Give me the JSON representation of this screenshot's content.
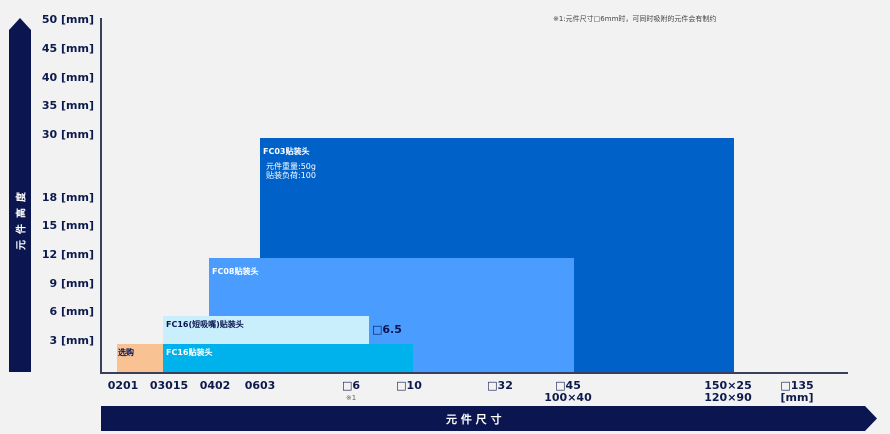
{
  "note": "※1:元件尺寸□6mm时，可同时吸附的元件会有制约",
  "y_axis_title": "元件高度",
  "x_axis_title": "元 件 尺 寸",
  "y_ticks": [
    "50 [mm]",
    "45 [mm]",
    "40 [mm]",
    "35 [mm]",
    "30 [mm]",
    "18 [mm]",
    "15 [mm]",
    "12 [mm]",
    "9 [mm]",
    "6 [mm]",
    "3 [mm]"
  ],
  "x_ticks": [
    {
      "line1": "0201"
    },
    {
      "line1": "03015"
    },
    {
      "line1": "0402"
    },
    {
      "line1": "0603"
    },
    {
      "line1": "□6",
      "sub": "※1"
    },
    {
      "line1": "□10"
    },
    {
      "line1": "□32"
    },
    {
      "line1": "□45",
      "line2": "100×40"
    },
    {
      "line1": "150×25",
      "line2": "120×90"
    },
    {
      "line1": "□135",
      "line2": "[mm]"
    }
  ],
  "regions": {
    "fc03": {
      "title": "FC03贴装头",
      "line1": "元件重量:50g",
      "line2": "贴装负荷:100",
      "color": "#0062c9"
    },
    "fc08": {
      "title": "FC08贴装头",
      "color": "#4a9dff"
    },
    "fc16_short": {
      "title": "FC16(短吸嘴)贴装头",
      "color": "#c9effd",
      "extra": "□6.5"
    },
    "fc16": {
      "title": "FC16贴装头",
      "color": "#00b2ec"
    },
    "option": {
      "title": "选购",
      "color": "#f9c293"
    }
  },
  "colors": {
    "navy": "#0b1650"
  }
}
